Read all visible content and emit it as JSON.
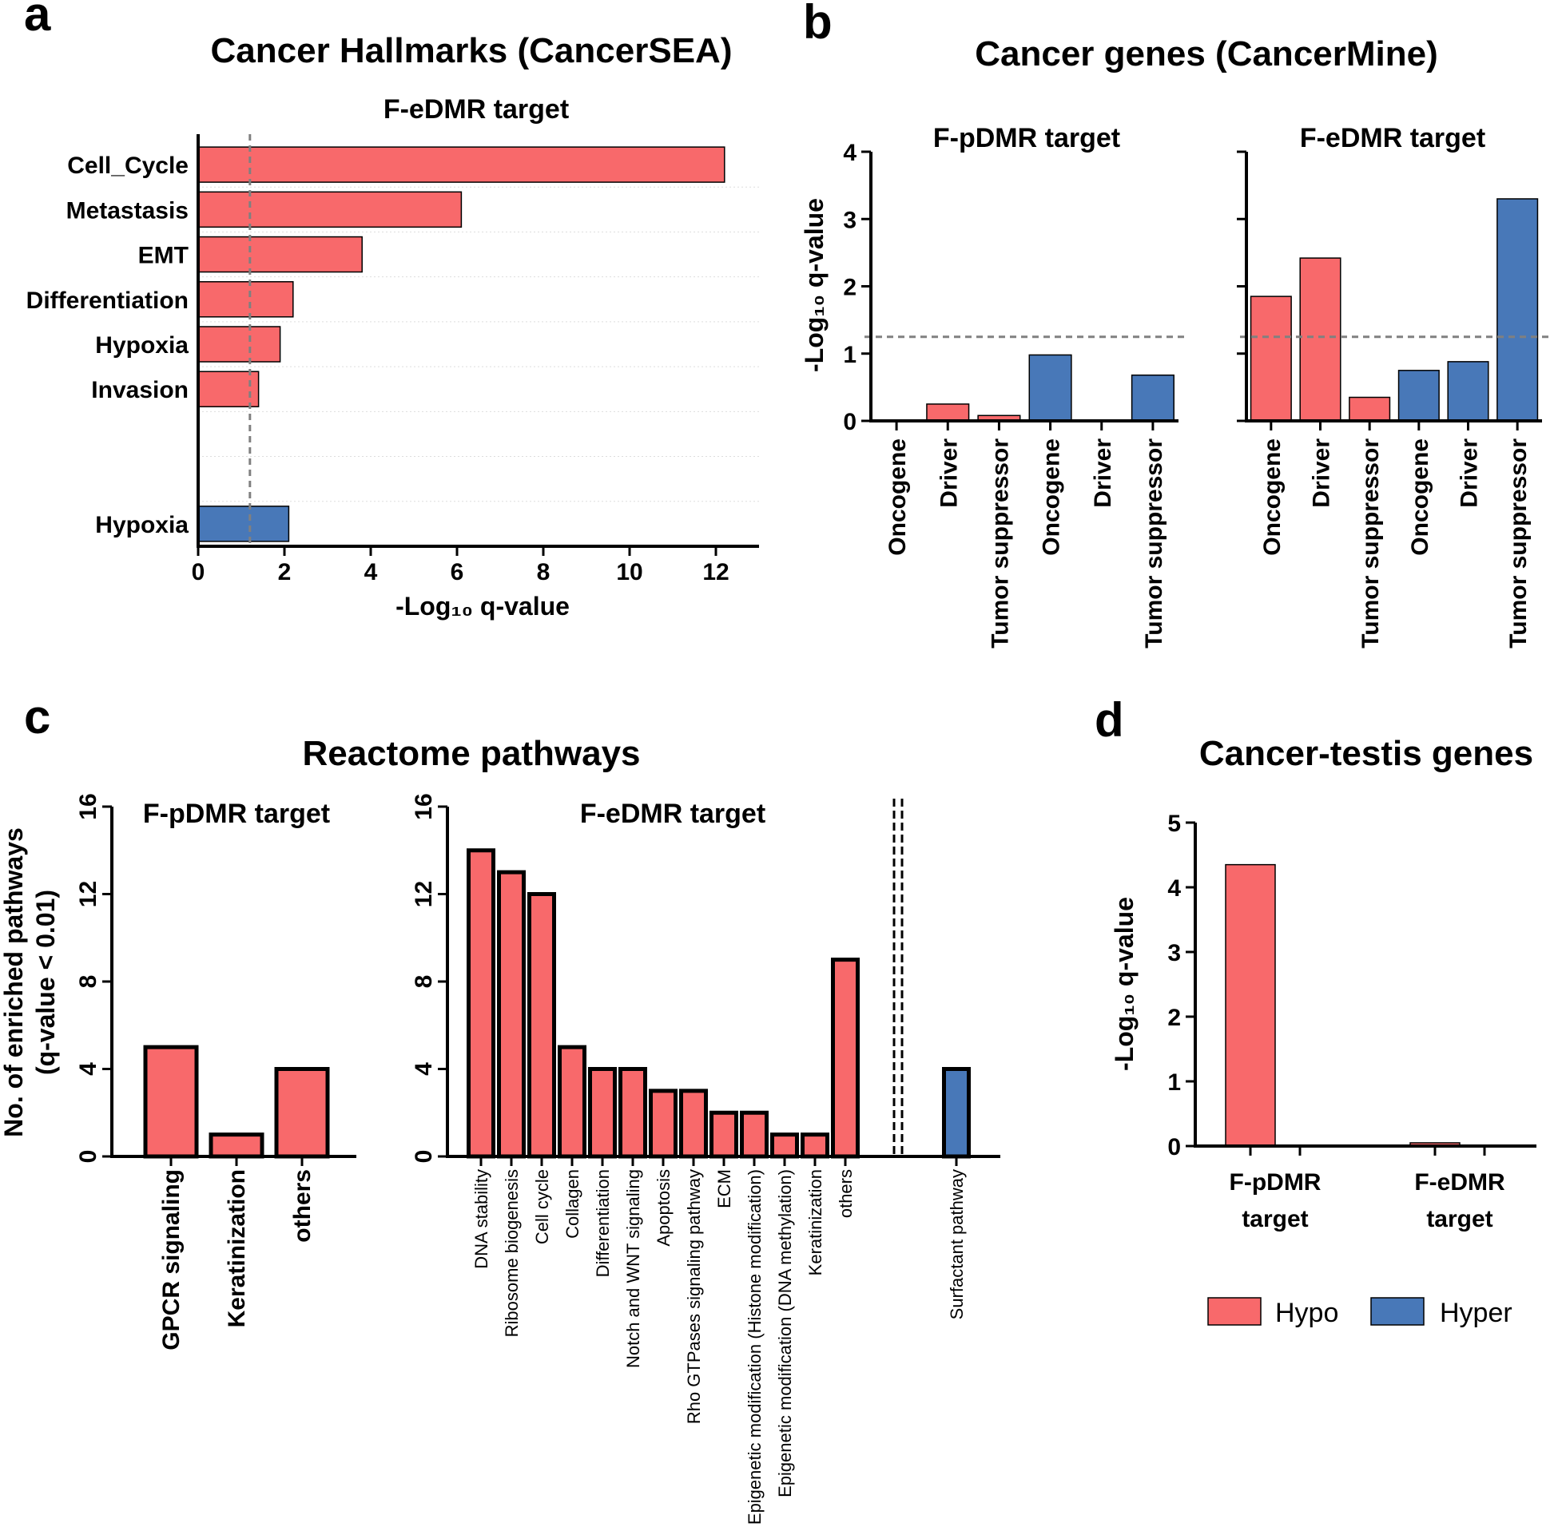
{
  "colors": {
    "hypo": "#F8696B",
    "hyper": "#4878B8",
    "threshold": "#808080"
  },
  "legend": [
    {
      "key": "hypo",
      "label": "Hypo"
    },
    {
      "key": "hyper",
      "label": "Hyper"
    }
  ],
  "panels": {
    "a": {
      "letter": "a",
      "title": "Cancer Hallmarks (CancerSEA)"
    },
    "b": {
      "letter": "b",
      "title": "Cancer genes (CancerMine)"
    },
    "c": {
      "letter": "c",
      "title": "Reactome pathways"
    },
    "d": {
      "letter": "d",
      "title": "Cancer-testis genes"
    }
  },
  "chart_data": [
    {
      "id": "a",
      "type": "bar",
      "orientation": "horizontal",
      "subtitle": "F-eDMR target",
      "xlabel": "-Log₁₀ q-value",
      "xlim": [
        0,
        13
      ],
      "xticks": [
        0,
        2,
        4,
        6,
        8,
        10,
        12
      ],
      "threshold": 1.2,
      "categories": [
        "Cell_Cycle",
        "Metastasis",
        "EMT",
        "Differentiation",
        "Hypoxia",
        "Invasion",
        "",
        "",
        "Hypoxia"
      ],
      "values": [
        12.2,
        6.1,
        3.8,
        2.2,
        1.9,
        1.4,
        null,
        null,
        2.1
      ],
      "groups": [
        "hypo",
        "hypo",
        "hypo",
        "hypo",
        "hypo",
        "hypo",
        null,
        null,
        "hyper"
      ]
    },
    {
      "id": "b1",
      "type": "bar",
      "subtitle": "F-pDMR target",
      "ylabel": "-Log₁₀ q-value",
      "ylim": [
        0,
        4
      ],
      "yticks": [
        0,
        1,
        2,
        3,
        4
      ],
      "threshold": 1.25,
      "categories": [
        "Oncogene",
        "Driver",
        "Tumor suppressor",
        "Oncogene",
        "Driver",
        "Tumor suppressor"
      ],
      "values": [
        0.0,
        0.25,
        0.08,
        0.98,
        0.0,
        0.68
      ],
      "groups": [
        "hypo",
        "hypo",
        "hypo",
        "hyper",
        "hyper",
        "hyper"
      ]
    },
    {
      "id": "b2",
      "type": "bar",
      "subtitle": "F-eDMR target",
      "ylim": [
        0,
        4
      ],
      "threshold": 1.25,
      "categories": [
        "Oncogene",
        "Driver",
        "Tumor suppressor",
        "Oncogene",
        "Driver",
        "Tumor suppressor"
      ],
      "values": [
        1.85,
        2.42,
        0.35,
        0.75,
        0.88,
        3.3
      ],
      "groups": [
        "hypo",
        "hypo",
        "hypo",
        "hyper",
        "hyper",
        "hyper"
      ]
    },
    {
      "id": "c1",
      "type": "bar",
      "subtitle": "F-pDMR target",
      "ylabel_lines": [
        "No. of enriched pathways",
        "(q-value < 0.01)"
      ],
      "ylim": [
        0,
        16
      ],
      "yticks": [
        0,
        4,
        8,
        12,
        16
      ],
      "categories": [
        "GPCR signaling",
        "Keratinization",
        "others"
      ],
      "values": [
        5,
        1,
        4
      ],
      "groups": [
        "hypo",
        "hypo",
        "hypo"
      ]
    },
    {
      "id": "c2",
      "type": "bar",
      "subtitle": "F-eDMR target",
      "ylim": [
        0,
        16
      ],
      "yticks": [
        0,
        4,
        8,
        12,
        16
      ],
      "categories": [
        "DNA stability",
        "Ribosome biogenesis",
        "Cell cycle",
        "Collagen",
        "Differentiation",
        "Notch and WNT signaling",
        "Apoptosis",
        "Rho GTPases signaling pathway",
        "ECM",
        "Epigenetic modification (Histone modification)",
        "Epigenetic modification (DNA methylation)",
        "Keratinization",
        "others",
        "Surfactant pathway"
      ],
      "values": [
        14,
        13,
        12,
        5,
        4,
        4,
        3,
        3,
        2,
        2,
        1,
        1,
        9,
        4
      ],
      "groups": [
        "hypo",
        "hypo",
        "hypo",
        "hypo",
        "hypo",
        "hypo",
        "hypo",
        "hypo",
        "hypo",
        "hypo",
        "hypo",
        "hypo",
        "hypo",
        "hyper"
      ]
    },
    {
      "id": "d",
      "type": "bar",
      "ylabel": "-Log₁₀ q-value",
      "ylim": [
        0,
        5
      ],
      "yticks": [
        0,
        1,
        2,
        3,
        4,
        5
      ],
      "categories": [
        [
          "F-pDMR",
          "target"
        ],
        [
          "F-eDMR",
          "target"
        ]
      ],
      "series": [
        {
          "name": "Hypo",
          "key": "hypo",
          "values": [
            4.35,
            0.05
          ]
        },
        {
          "name": "Hyper",
          "key": "hyper",
          "values": [
            0.0,
            0.0
          ]
        }
      ]
    }
  ]
}
